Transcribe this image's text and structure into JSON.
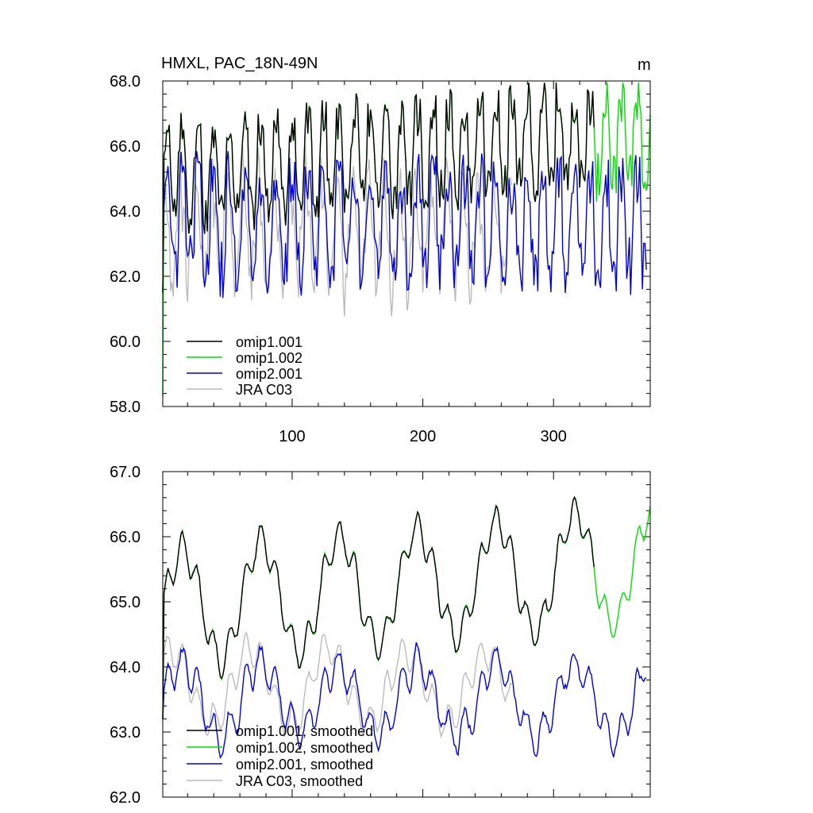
{
  "chart_data": [
    {
      "type": "line",
      "title": "HMXL, PAC_18N-49N",
      "units": "m",
      "xlim": [
        1,
        374
      ],
      "ylim": [
        58.0,
        68.0
      ],
      "yticks": [
        "58.0",
        "60.0",
        "62.0",
        "64.0",
        "66.0",
        "68.0"
      ],
      "ytick_values": [
        58,
        60,
        62,
        64,
        66,
        68
      ],
      "xticks": [
        "100",
        "200",
        "300"
      ],
      "xtick_values": [
        100,
        200,
        300
      ],
      "period": 12,
      "series": [
        {
          "name": "omip1.001",
          "color": "#000000",
          "length": 331,
          "base": 65.1,
          "amp": 1.5,
          "noise": 0.7,
          "trend": 0.0035
        },
        {
          "name": "omip1.002",
          "color": "#00dd00",
          "length": 374,
          "base": 65.1,
          "amp": 1.5,
          "noise": 0.7,
          "trend": 0.0035
        },
        {
          "name": "omip2.001",
          "color": "#0000dd",
          "length": 371,
          "base": 63.6,
          "amp": 1.6,
          "noise": 0.9,
          "trend": 0.0
        },
        {
          "name": "JRA C03",
          "color": "#bbbbbb",
          "length": 268,
          "base": 63.4,
          "amp": 1.5,
          "noise": 0.8,
          "trend": 0.0
        }
      ]
    },
    {
      "type": "line",
      "title": "",
      "ylim": [
        62.0,
        67.0
      ],
      "yticks": [
        "62.0",
        "63.0",
        "64.0",
        "65.0",
        "66.0",
        "67.0"
      ],
      "ytick_values": [
        62,
        63,
        64,
        65,
        66,
        67
      ],
      "xlim": [
        1,
        374
      ],
      "xtick_values": [
        100,
        200,
        300
      ],
      "period": 60,
      "series": [
        {
          "name": "omip1.001, smoothed",
          "color": "#000000",
          "length": 331,
          "base": 64.9,
          "amp": 0.85,
          "noise": 0.12,
          "trend": 0.0018
        },
        {
          "name": "omip1.002, smoothed",
          "color": "#00dd00",
          "length": 374,
          "base": 64.9,
          "amp": 0.85,
          "noise": 0.12,
          "trend": 0.0018
        },
        {
          "name": "omip2.001, smoothed",
          "color": "#0000dd",
          "length": 371,
          "base": 63.5,
          "amp": 0.55,
          "noise": 0.22,
          "trend": 0.0
        },
        {
          "name": "JRA C03, smoothed",
          "color": "#bbbbbb",
          "length": 268,
          "base": 63.7,
          "amp": 0.55,
          "noise": 0.15,
          "trend": 0.0
        }
      ]
    }
  ]
}
